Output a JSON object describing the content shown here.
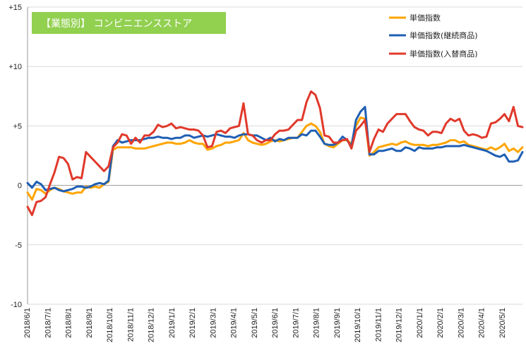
{
  "chart_data": {
    "type": "line",
    "title": "【業態別】 コンビニエンスストア",
    "colors": {
      "title_bg": "#92D050",
      "series": [
        "#FFA500",
        "#1F5FB4",
        "#E0392B"
      ]
    },
    "ylim": [
      -10,
      15
    ],
    "yticks": [
      15,
      10,
      5,
      0,
      -5,
      -10
    ],
    "ytick_labels": [
      "+15",
      "+10",
      "+5",
      "0",
      "-5",
      "-10"
    ],
    "x_labels": [
      "2018/6/1",
      "2018/7/1",
      "2018/8/1",
      "2018/9/1",
      "2018/10/1",
      "2018/11/1",
      "2018/12/1",
      "2019/1/1",
      "2019/2/1",
      "2019/3/1",
      "2019/4/1",
      "2019/5/1",
      "2019/6/1",
      "2019/7/1",
      "2019/8/1",
      "2019/9/1",
      "2019/10/1",
      "2019/11/1",
      "2019/12/1",
      "2020/1/1",
      "2020/2/1",
      "2020/3/1",
      "2020/4/1",
      "2020/5/1"
    ],
    "grid": "horizontal",
    "legend": "top-right",
    "series": [
      {
        "name": "単価指数",
        "values": [
          -0.6,
          -1.2,
          -0.3,
          -0.4,
          -0.7,
          -0.4,
          -0.2,
          -0.3,
          -0.5,
          -0.6,
          -0.7,
          -0.6,
          -0.6,
          -0.1,
          -0.2,
          -0.1,
          -0.2,
          0.1,
          0.3,
          3.0,
          3.2,
          3.2,
          3.2,
          3.2,
          3.1,
          3.1,
          3.1,
          3.2,
          3.3,
          3.4,
          3.5,
          3.6,
          3.6,
          3.5,
          3.5,
          3.6,
          3.8,
          3.6,
          3.5,
          3.5,
          3.0,
          3.1,
          3.3,
          3.4,
          3.6,
          3.6,
          3.7,
          3.8,
          4.4,
          3.8,
          3.6,
          3.5,
          3.4,
          3.5,
          3.7,
          3.8,
          3.7,
          3.8,
          3.9,
          4.0,
          4.0,
          4.5,
          5.0,
          5.2,
          5.0,
          4.5,
          3.5,
          3.3,
          3.2,
          3.5,
          3.8,
          3.8,
          3.5,
          5.0,
          5.7,
          5.6,
          2.5,
          2.8,
          3.2,
          3.3,
          3.4,
          3.5,
          3.4,
          3.6,
          3.7,
          3.5,
          3.4,
          3.4,
          3.4,
          3.3,
          3.4,
          3.4,
          3.5,
          3.6,
          3.8,
          3.8,
          3.6,
          3.7,
          3.4,
          3.3,
          3.2,
          3.1,
          3.0,
          3.2,
          3.0,
          3.2,
          3.5,
          2.9,
          3.1,
          2.8,
          3.2
        ]
      },
      {
        "name": "単価指数(継続商品)",
        "values": [
          0.2,
          -0.2,
          0.3,
          0.1,
          -0.4,
          -0.3,
          -0.2,
          -0.4,
          -0.5,
          -0.4,
          -0.3,
          -0.1,
          -0.1,
          -0.2,
          -0.1,
          0.1,
          0.2,
          0.1,
          0.4,
          3.3,
          3.8,
          3.6,
          3.7,
          3.8,
          3.8,
          3.8,
          3.9,
          4.0,
          4.0,
          4.1,
          4.0,
          4.0,
          3.9,
          4.0,
          4.0,
          4.2,
          4.2,
          4.0,
          4.1,
          4.2,
          4.1,
          4.2,
          4.3,
          4.2,
          4.1,
          4.1,
          4.0,
          4.2,
          4.3,
          4.3,
          4.2,
          4.2,
          4.0,
          3.8,
          4.0,
          3.7,
          3.9,
          3.8,
          4.0,
          4.0,
          4.0,
          4.3,
          4.2,
          4.6,
          4.6,
          4.1,
          3.5,
          3.4,
          3.4,
          3.6,
          4.1,
          3.8,
          3.3,
          5.5,
          6.2,
          6.6,
          2.6,
          2.6,
          2.9,
          2.9,
          3.0,
          3.1,
          2.9,
          2.9,
          3.2,
          3.1,
          2.9,
          3.2,
          3.1,
          3.1,
          3.1,
          3.2,
          3.2,
          3.3,
          3.3,
          3.3,
          3.3,
          3.4,
          3.3,
          3.2,
          3.1,
          3.0,
          2.9,
          2.7,
          2.5,
          2.4,
          2.6,
          2.0,
          2.0,
          2.1,
          2.8
        ]
      },
      {
        "name": "単価指数(入替商品)",
        "values": [
          -1.8,
          -2.5,
          -1.4,
          -1.3,
          -1.0,
          0.1,
          1.1,
          2.4,
          2.3,
          1.8,
          0.5,
          0.7,
          0.6,
          2.8,
          2.4,
          2.0,
          1.6,
          1.2,
          1.6,
          3.2,
          3.6,
          4.3,
          4.2,
          3.5,
          4.0,
          3.6,
          4.2,
          4.2,
          4.5,
          5.1,
          4.9,
          5.0,
          5.2,
          4.8,
          4.9,
          4.8,
          4.7,
          4.7,
          4.6,
          4.2,
          3.2,
          3.3,
          4.5,
          4.6,
          4.4,
          4.8,
          4.9,
          5.0,
          6.9,
          4.3,
          4.2,
          3.8,
          3.6,
          3.8,
          3.8,
          4.3,
          4.6,
          4.6,
          4.7,
          5.1,
          5.5,
          5.5,
          7.0,
          7.9,
          7.6,
          6.5,
          4.2,
          4.1,
          3.6,
          3.6,
          3.8,
          3.9,
          3.1,
          4.6,
          5.0,
          5.5,
          2.8,
          3.9,
          4.7,
          4.5,
          5.2,
          5.6,
          6.0,
          6.0,
          6.0,
          5.4,
          4.9,
          4.7,
          4.6,
          4.2,
          4.5,
          4.5,
          4.4,
          5.2,
          5.6,
          5.4,
          5.6,
          4.6,
          4.2,
          4.3,
          4.2,
          4.0,
          4.1,
          5.2,
          5.3,
          5.6,
          6.0,
          5.4,
          6.6,
          5.0,
          4.9
        ]
      }
    ]
  }
}
